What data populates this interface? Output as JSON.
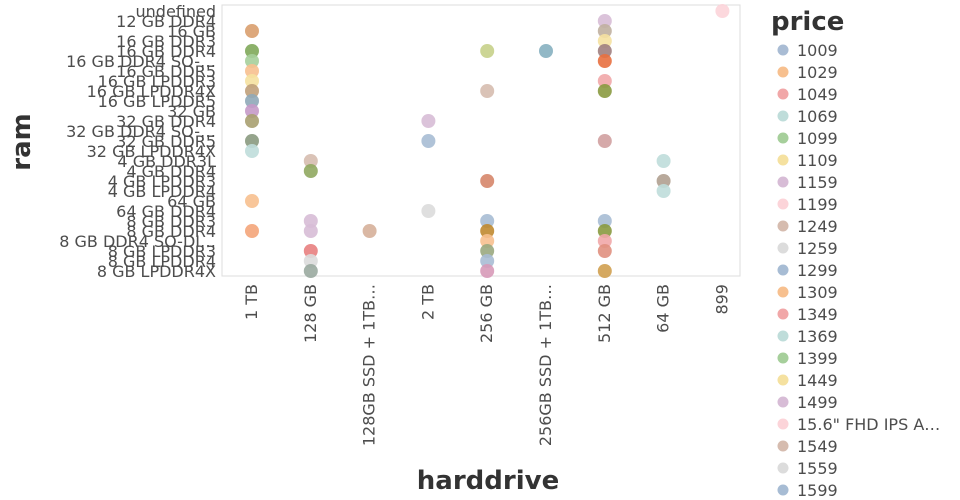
{
  "chart_data": {
    "type": "scatter",
    "xlabel": "harddrive",
    "ylabel": "ram",
    "x_categories": [
      "1 TB",
      "128 GB",
      "128GB SSD + 1TB…",
      "2 TB",
      "256 GB",
      "256GB SSD + 1TB…",
      "512 GB",
      "64 GB",
      "899"
    ],
    "y_categories": [
      "undefined",
      "12 GB DDR4",
      "16 GB",
      "16 GB DDR3",
      "16 GB DDR4",
      "16 GB DDR4 SO-…",
      "16 GB DDR5",
      "16 GB LPDDR3",
      "16 GB LPDDR4X",
      "16 GB LPDDR5",
      "32 GB",
      "32 GB DDR4",
      "32 GB DDR4 SO-…",
      "32 GB DDR5",
      "32 GB LPDDR4X",
      "4 GB DDR3L",
      "4 GB DDR4",
      "4 GB LPDDR3",
      "4 GB LPDDR4",
      "64 GB",
      "64 GB DDR4",
      "8 GB DDR3",
      "8 GB DDR4",
      "8 GB DDR4 SO-DI…",
      "8 GB LPDDR3",
      "8 GB LPDDR4",
      "8 GB LPDDR4X"
    ],
    "legend": {
      "title": "price",
      "entries": [
        {
          "label": "1009",
          "color": "#a9bcd4"
        },
        {
          "label": "1029",
          "color": "#f7c08f"
        },
        {
          "label": "1049",
          "color": "#f1a7a8"
        },
        {
          "label": "1069",
          "color": "#bfddda"
        },
        {
          "label": "1099",
          "color": "#a6cf9b"
        },
        {
          "label": "1109",
          "color": "#f5e1a0"
        },
        {
          "label": "1159",
          "color": "#d7bcd6"
        },
        {
          "label": "1199",
          "color": "#fcd4d9"
        },
        {
          "label": "1249",
          "color": "#d6bcaf"
        },
        {
          "label": "1259",
          "color": "#dcdcdc"
        },
        {
          "label": "1299",
          "color": "#a7bcd4"
        },
        {
          "label": "1309",
          "color": "#f7c08f"
        },
        {
          "label": "1349",
          "color": "#f1a7a8"
        },
        {
          "label": "1369",
          "color": "#bfddda"
        },
        {
          "label": "1399",
          "color": "#a6cf9b"
        },
        {
          "label": "1449",
          "color": "#f5e1a0"
        },
        {
          "label": "1499",
          "color": "#d7bcd6"
        },
        {
          "label": "15.6\" FHD IPS A…",
          "color": "#fcd4d9"
        },
        {
          "label": "1549",
          "color": "#d6bcaf"
        },
        {
          "label": "1559",
          "color": "#dcdcdc"
        },
        {
          "label": "1599",
          "color": "#a7bcd4"
        }
      ]
    },
    "points": [
      {
        "x": "1 TB",
        "y": "16 GB",
        "color": "#d99e6e"
      },
      {
        "x": "1 TB",
        "y": "16 GB DDR4",
        "color": "#7fa85a"
      },
      {
        "x": "1 TB",
        "y": "16 GB DDR4 SO-…",
        "color": "#a6cf9b"
      },
      {
        "x": "1 TB",
        "y": "16 GB DDR5",
        "color": "#f7c08f"
      },
      {
        "x": "1 TB",
        "y": "16 GB LPDDR3",
        "color": "#f5e1a0"
      },
      {
        "x": "1 TB",
        "y": "16 GB LPDDR4X",
        "color": "#c0a07a"
      },
      {
        "x": "1 TB",
        "y": "16 GB LPDDR5",
        "color": "#8fa8b8"
      },
      {
        "x": "1 TB",
        "y": "32 GB",
        "color": "#c59ac8"
      },
      {
        "x": "1 TB",
        "y": "32 GB DDR4",
        "color": "#a8a070"
      },
      {
        "x": "1 TB",
        "y": "32 GB DDR5",
        "color": "#8a9a80"
      },
      {
        "x": "1 TB",
        "y": "32 GB LPDDR4X",
        "color": "#bfddda"
      },
      {
        "x": "1 TB",
        "y": "64 GB",
        "color": "#f7c08f"
      },
      {
        "x": "1 TB",
        "y": "8 GB DDR4",
        "color": "#f4a57a"
      },
      {
        "x": "128 GB",
        "y": "4 GB DDR3L",
        "color": "#d6bcaf"
      },
      {
        "x": "128 GB",
        "y": "4 GB DDR4",
        "color": "#90a860"
      },
      {
        "x": "128 GB",
        "y": "8 GB DDR3",
        "color": "#d7bcd6"
      },
      {
        "x": "128 GB",
        "y": "8 GB DDR4",
        "color": "#d7bcd6"
      },
      {
        "x": "128 GB",
        "y": "8 GB LPDDR3",
        "color": "#e88080"
      },
      {
        "x": "128 GB",
        "y": "8 GB LPDDR4",
        "color": "#dcdcdc"
      },
      {
        "x": "128 GB",
        "y": "8 GB LPDDR4X",
        "color": "#9aaaa0"
      },
      {
        "x": "128GB SSD + 1TB…",
        "y": "8 GB DDR4",
        "color": "#d6b09a"
      },
      {
        "x": "2 TB",
        "y": "32 GB DDR4",
        "color": "#d7bcd6"
      },
      {
        "x": "2 TB",
        "y": "32 GB DDR5",
        "color": "#a7bcd4"
      },
      {
        "x": "2 TB",
        "y": "64 GB DDR4",
        "color": "#dcdcdc"
      },
      {
        "x": "256 GB",
        "y": "16 GB DDR4",
        "color": "#c6d08a"
      },
      {
        "x": "256 GB",
        "y": "16 GB LPDDR4X",
        "color": "#d6bcaf"
      },
      {
        "x": "256 GB",
        "y": "4 GB LPDDR3",
        "color": "#d6866a"
      },
      {
        "x": "256 GB",
        "y": "8 GB DDR3",
        "color": "#a7bcd4"
      },
      {
        "x": "256 GB",
        "y": "8 GB DDR4",
        "color": "#c08a30"
      },
      {
        "x": "256 GB",
        "y": "8 GB DDR4 SO-DI…",
        "color": "#f7c08f"
      },
      {
        "x": "256 GB",
        "y": "8 GB LPDDR3",
        "color": "#9aa880"
      },
      {
        "x": "256 GB",
        "y": "8 GB LPDDR4",
        "color": "#a9bcd4"
      },
      {
        "x": "256 GB",
        "y": "8 GB LPDDR4X",
        "color": "#d79ab8"
      },
      {
        "x": "256GB SSD + 1TB…",
        "y": "16 GB DDR4",
        "color": "#86b0c0"
      },
      {
        "x": "512 GB",
        "y": "12 GB DDR4",
        "color": "#d7bcd6"
      },
      {
        "x": "512 GB",
        "y": "16 GB",
        "color": "#c0b0a0"
      },
      {
        "x": "512 GB",
        "y": "16 GB DDR3",
        "color": "#f5e1a0"
      },
      {
        "x": "512 GB",
        "y": "16 GB DDR4",
        "color": "#a08080"
      },
      {
        "x": "512 GB",
        "y": "16 GB DDR4 SO-…",
        "color": "#e87040"
      },
      {
        "x": "512 GB",
        "y": "16 GB LPDDR3",
        "color": "#f1a7a8"
      },
      {
        "x": "512 GB",
        "y": "16 GB LPDDR4X",
        "color": "#8a9a40"
      },
      {
        "x": "512 GB",
        "y": "32 GB DDR5",
        "color": "#d0a0a0"
      },
      {
        "x": "512 GB",
        "y": "8 GB DDR3",
        "color": "#a7bcd4"
      },
      {
        "x": "512 GB",
        "y": "8 GB DDR4",
        "color": "#8a9a40"
      },
      {
        "x": "512 GB",
        "y": "8 GB DDR4 SO-DI…",
        "color": "#f1a7a8"
      },
      {
        "x": "512 GB",
        "y": "8 GB LPDDR3",
        "color": "#e09080"
      },
      {
        "x": "512 GB",
        "y": "8 GB LPDDR4X",
        "color": "#d0a050"
      },
      {
        "x": "64 GB",
        "y": "4 GB DDR3L",
        "color": "#bfddda"
      },
      {
        "x": "64 GB",
        "y": "4 GB LPDDR3",
        "color": "#b0a090"
      },
      {
        "x": "64 GB",
        "y": "4 GB LPDDR4",
        "color": "#bfddda"
      },
      {
        "x": "899",
        "y": "undefined",
        "color": "#fcd4d9"
      }
    ]
  }
}
